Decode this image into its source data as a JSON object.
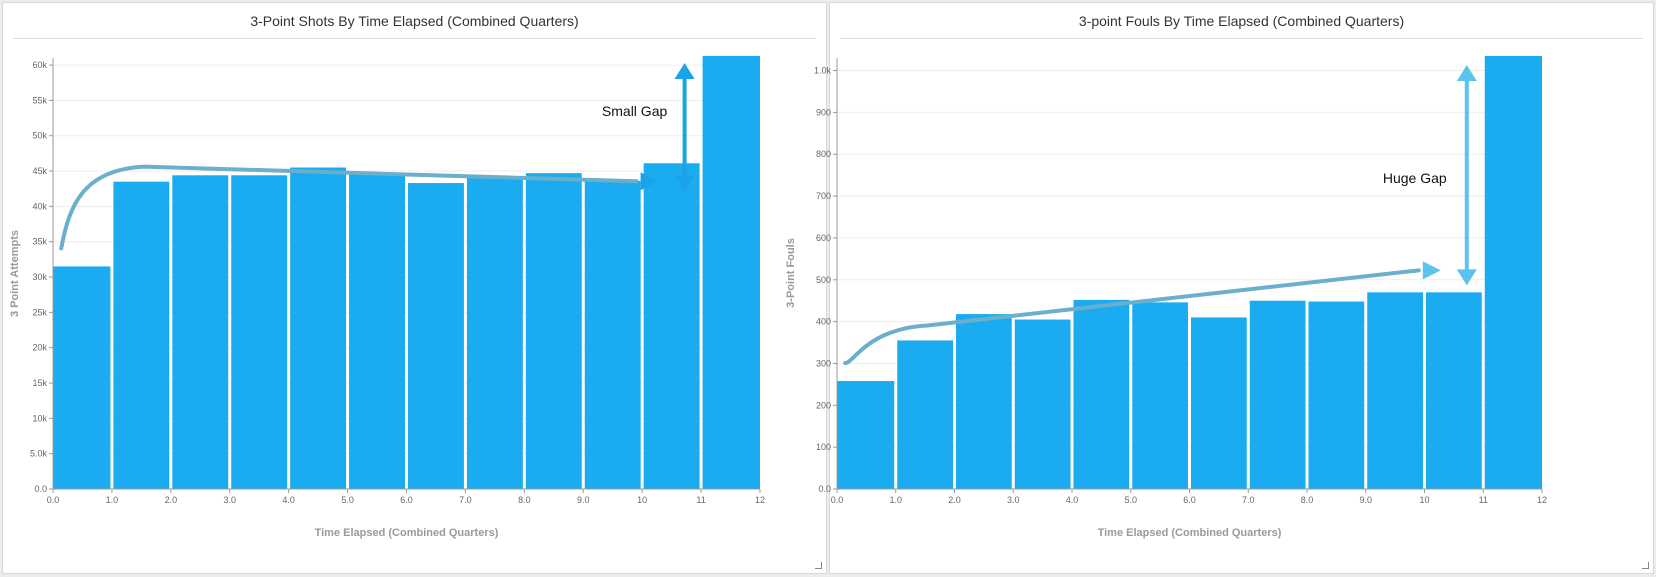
{
  "colors": {
    "bar": "#1aabf0",
    "trend": "#6aafcc",
    "arrow_left": "#1aa3e8",
    "arrow_right": "#5cc2ee",
    "grid": "#eeeeee"
  },
  "panels": [
    {
      "title": "3-Point Shots By Time Elapsed (Combined Quarters)",
      "annotation": "Small Gap"
    },
    {
      "title": "3-point Fouls By Time Elapsed (Combined Quarters)",
      "annotation": "Huge Gap"
    }
  ],
  "chart_data": [
    {
      "type": "bar",
      "title": "3-Point Shots By Time Elapsed (Combined Quarters)",
      "xlabel": "Time Elapsed (Combined Quarters)",
      "ylabel": "3 Point Attempts",
      "xlim": [
        0,
        12
      ],
      "ylim": [
        0,
        61000
      ],
      "x_ticks": [
        0,
        1,
        2,
        3,
        4,
        5,
        6,
        7,
        8,
        9,
        10,
        11,
        12
      ],
      "x_tick_labels": [
        "0.0",
        "1.0",
        "2.0",
        "3.0",
        "4.0",
        "5.0",
        "6.0",
        "7.0",
        "8.0",
        "9.0",
        "10",
        "11",
        "12"
      ],
      "y_ticks": [
        0,
        5000,
        10000,
        15000,
        20000,
        25000,
        30000,
        35000,
        40000,
        45000,
        50000,
        55000,
        60000
      ],
      "y_tick_labels": [
        "0.0",
        "5.0k",
        "10k",
        "15k",
        "20k",
        "25k",
        "30k",
        "35k",
        "40k",
        "45k",
        "50k",
        "55k",
        "60k"
      ],
      "bins": [
        [
          0,
          1
        ],
        [
          1,
          2
        ],
        [
          2,
          3
        ],
        [
          3,
          4
        ],
        [
          4,
          5
        ],
        [
          5,
          6
        ],
        [
          6,
          7
        ],
        [
          7,
          8
        ],
        [
          8,
          9
        ],
        [
          9,
          10
        ],
        [
          10,
          11
        ],
        [
          11,
          12
        ]
      ],
      "values": [
        31500,
        43500,
        44400,
        44400,
        45500,
        44600,
        43300,
        44100,
        44700,
        43600,
        46100,
        61300
      ],
      "grid": true,
      "annotation": "Small Gap"
    },
    {
      "type": "bar",
      "title": "3-point Fouls By Time Elapsed (Combined Quarters)",
      "xlabel": "Time Elapsed (Combined Quarters)",
      "ylabel": "3-Point Fouls",
      "xlim": [
        0,
        12
      ],
      "ylim": [
        0,
        1030
      ],
      "x_ticks": [
        0,
        1,
        2,
        3,
        4,
        5,
        6,
        7,
        8,
        9,
        10,
        11,
        12
      ],
      "x_tick_labels": [
        "0.0",
        "1.0",
        "2.0",
        "3.0",
        "4.0",
        "5.0",
        "6.0",
        "7.0",
        "8.0",
        "9.0",
        "10",
        "11",
        "12"
      ],
      "y_ticks": [
        0,
        100,
        200,
        300,
        400,
        500,
        600,
        700,
        800,
        900,
        1000
      ],
      "y_tick_labels": [
        "0.0",
        "100",
        "200",
        "300",
        "400",
        "500",
        "600",
        "700",
        "800",
        "900",
        "1.0k"
      ],
      "bins": [
        [
          0,
          1
        ],
        [
          1,
          2
        ],
        [
          2,
          3
        ],
        [
          3,
          4
        ],
        [
          4,
          5
        ],
        [
          5,
          6
        ],
        [
          6,
          7
        ],
        [
          7,
          8
        ],
        [
          8,
          9
        ],
        [
          9,
          10
        ],
        [
          10,
          11
        ],
        [
          11,
          12
        ]
      ],
      "values": [
        258,
        355,
        418,
        405,
        452,
        446,
        410,
        450,
        448,
        470,
        470,
        1035
      ],
      "grid": true,
      "annotation": "Huge Gap"
    }
  ]
}
